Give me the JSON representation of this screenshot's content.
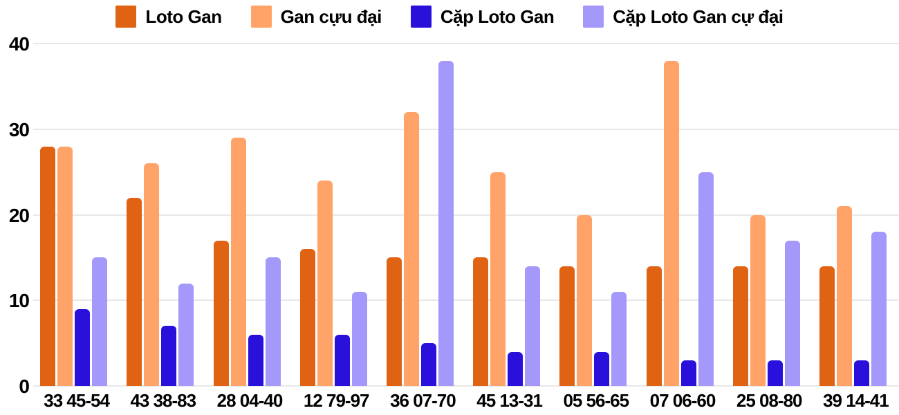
{
  "chart_data": {
    "type": "bar",
    "title": "",
    "xlabel": "",
    "ylabel": "",
    "categories": [
      "33 45-54",
      "43 38-83",
      "28 04-40",
      "12 79-97",
      "36 07-70",
      "45 13-31",
      "05 56-65",
      "07 06-60",
      "25 08-80",
      "39 14-41"
    ],
    "series": [
      {
        "name": "Loto Gan",
        "color": "#e06213",
        "values": [
          28,
          22,
          17,
          16,
          15,
          15,
          14,
          14,
          14,
          14
        ]
      },
      {
        "name": "Gan cựu đại",
        "color": "#ffa369",
        "values": [
          28,
          26,
          29,
          24,
          32,
          25,
          20,
          38,
          20,
          21
        ]
      },
      {
        "name": "Cặp Loto Gan",
        "color": "#2a10db",
        "values": [
          9,
          7,
          6,
          6,
          5,
          4,
          4,
          3,
          3,
          3
        ]
      },
      {
        "name": "Cặp Loto Gan cự đại",
        "color": "#a498fa",
        "values": [
          15,
          12,
          15,
          11,
          38,
          14,
          11,
          25,
          17,
          18
        ]
      }
    ],
    "ylim": [
      0,
      40
    ],
    "yticks": [
      0,
      10,
      20,
      30,
      40
    ],
    "grid": true,
    "legend_position": "top"
  },
  "colors": {
    "grid": "#e8e8e8",
    "text": "#000000",
    "background": "#ffffff"
  }
}
